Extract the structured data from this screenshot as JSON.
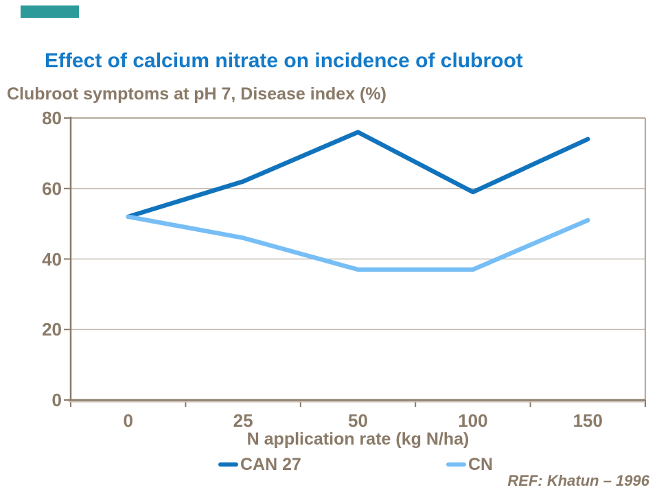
{
  "accent_bar_color": "#2D9A9A",
  "title": {
    "text": "Effect of calcium nitrate on incidence of clubroot",
    "color": "#147AC8"
  },
  "subtitle": {
    "text": "Clubroot symptoms at pH 7, Disease index (%)",
    "color": "#8A7A68"
  },
  "footer": {
    "ref_text": "REF: Khatun – 1996"
  },
  "chart_data": {
    "type": "line",
    "categories": [
      "0",
      "25",
      "50",
      "100",
      "150"
    ],
    "series": [
      {
        "name": "CAN 27",
        "color": "#1173BC",
        "values": [
          52,
          62,
          76,
          59,
          74
        ]
      },
      {
        "name": "CN",
        "color": "#76BEF5",
        "values": [
          52,
          46,
          37,
          37,
          51
        ]
      }
    ],
    "xlabel": "N application rate (kg N/ha)",
    "ylabel": "",
    "ylim": [
      0,
      80
    ],
    "yticks": [
      0,
      20,
      40,
      60,
      80
    ],
    "grid": true,
    "legend_position": "bottom",
    "colors": {
      "axis": "#8A7A68",
      "axis_shadow": "#C9BEB2",
      "gridline": "#C3BAB0",
      "plot_border": "#B5A99D",
      "tick_text": "#8A7A68"
    }
  }
}
